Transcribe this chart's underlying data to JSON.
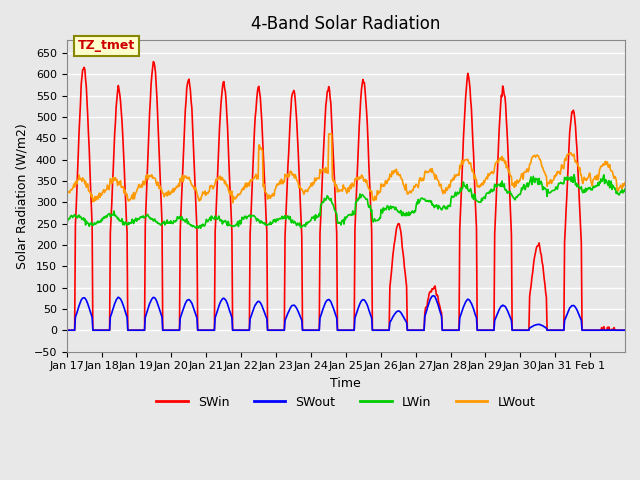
{
  "title": "4-Band Solar Radiation",
  "xlabel": "Time",
  "ylabel": "Solar Radiation (W/m2)",
  "ylim": [
    -50,
    680
  ],
  "background_color": "#e8e8e8",
  "plot_bg_color": "#e8e8e8",
  "grid_color": "#ffffff",
  "annotation_label": "TZ_tmet",
  "annotation_bg": "#ffffcc",
  "annotation_border": "#888800",
  "colors": {
    "SWin": "#ff0000",
    "SWout": "#0000ff",
    "LWin": "#00cc00",
    "LWout": "#ff9900"
  },
  "linewidths": {
    "SWin": 1.2,
    "SWout": 1.2,
    "LWin": 1.2,
    "LWout": 1.2
  },
  "tick_labels": [
    "Jan 17",
    "Jan 18",
    "Jan 19",
    "Jan 20",
    "Jan 21",
    "Jan 22",
    "Jan 23",
    "Jan 24",
    "Jan 25",
    "Jan 26",
    "Jan 27",
    "Jan 28",
    "Jan 29",
    "Jan 30",
    "Jan 31",
    "Feb 1"
  ],
  "legend_entries": [
    "SWin",
    "SWout",
    "LWin",
    "LWout"
  ],
  "legend_colors": [
    "#ff0000",
    "#0000ff",
    "#00cc00",
    "#ff9900"
  ]
}
